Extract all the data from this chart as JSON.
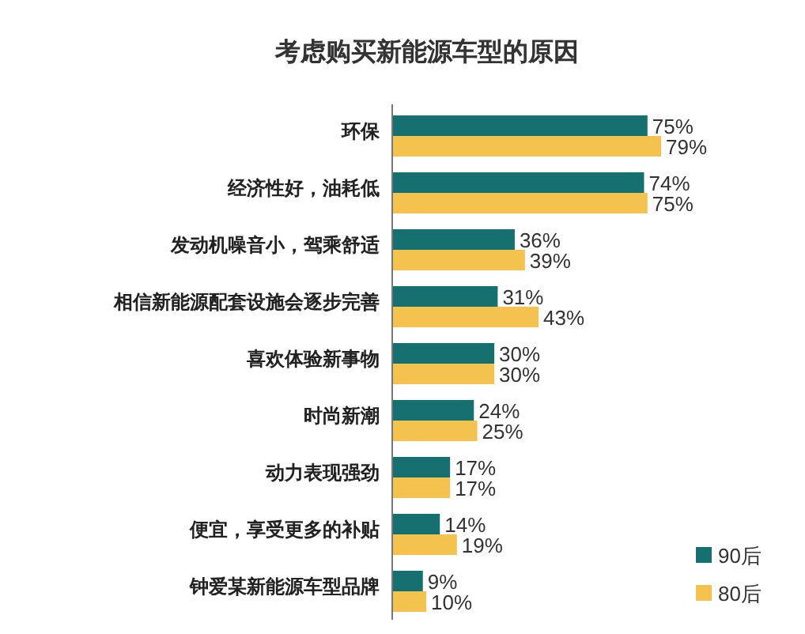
{
  "chart_data": {
    "type": "bar",
    "orientation": "horizontal",
    "title": "考虑购买新能源车型的原因",
    "categories": [
      "环保",
      "经济性好，油耗低",
      "发动机噪音小，驾乘舒适",
      "相信新能源配套设施会逐步完善",
      "喜欢体验新事物",
      "时尚新潮",
      "动力表现强劲",
      "便宜，享受更多的补贴",
      "钟爱某新能源车型品牌"
    ],
    "series": [
      {
        "name": "90后",
        "color": "#15706f",
        "values": [
          75,
          74,
          36,
          31,
          30,
          24,
          17,
          14,
          9
        ],
        "value_labels": [
          "75%",
          "74%",
          "36%",
          "31%",
          "30%",
          "24%",
          "17%",
          "14%",
          "9%"
        ]
      },
      {
        "name": "80后",
        "color": "#f3c24f",
        "values": [
          79,
          75,
          39,
          43,
          30,
          25,
          17,
          19,
          10
        ],
        "value_labels": [
          "79%",
          "75%",
          "39%",
          "43%",
          "30%",
          "25%",
          "17%",
          "19%",
          "10%"
        ]
      }
    ],
    "tick_labels": "y",
    "legend": "bottom right"
  }
}
